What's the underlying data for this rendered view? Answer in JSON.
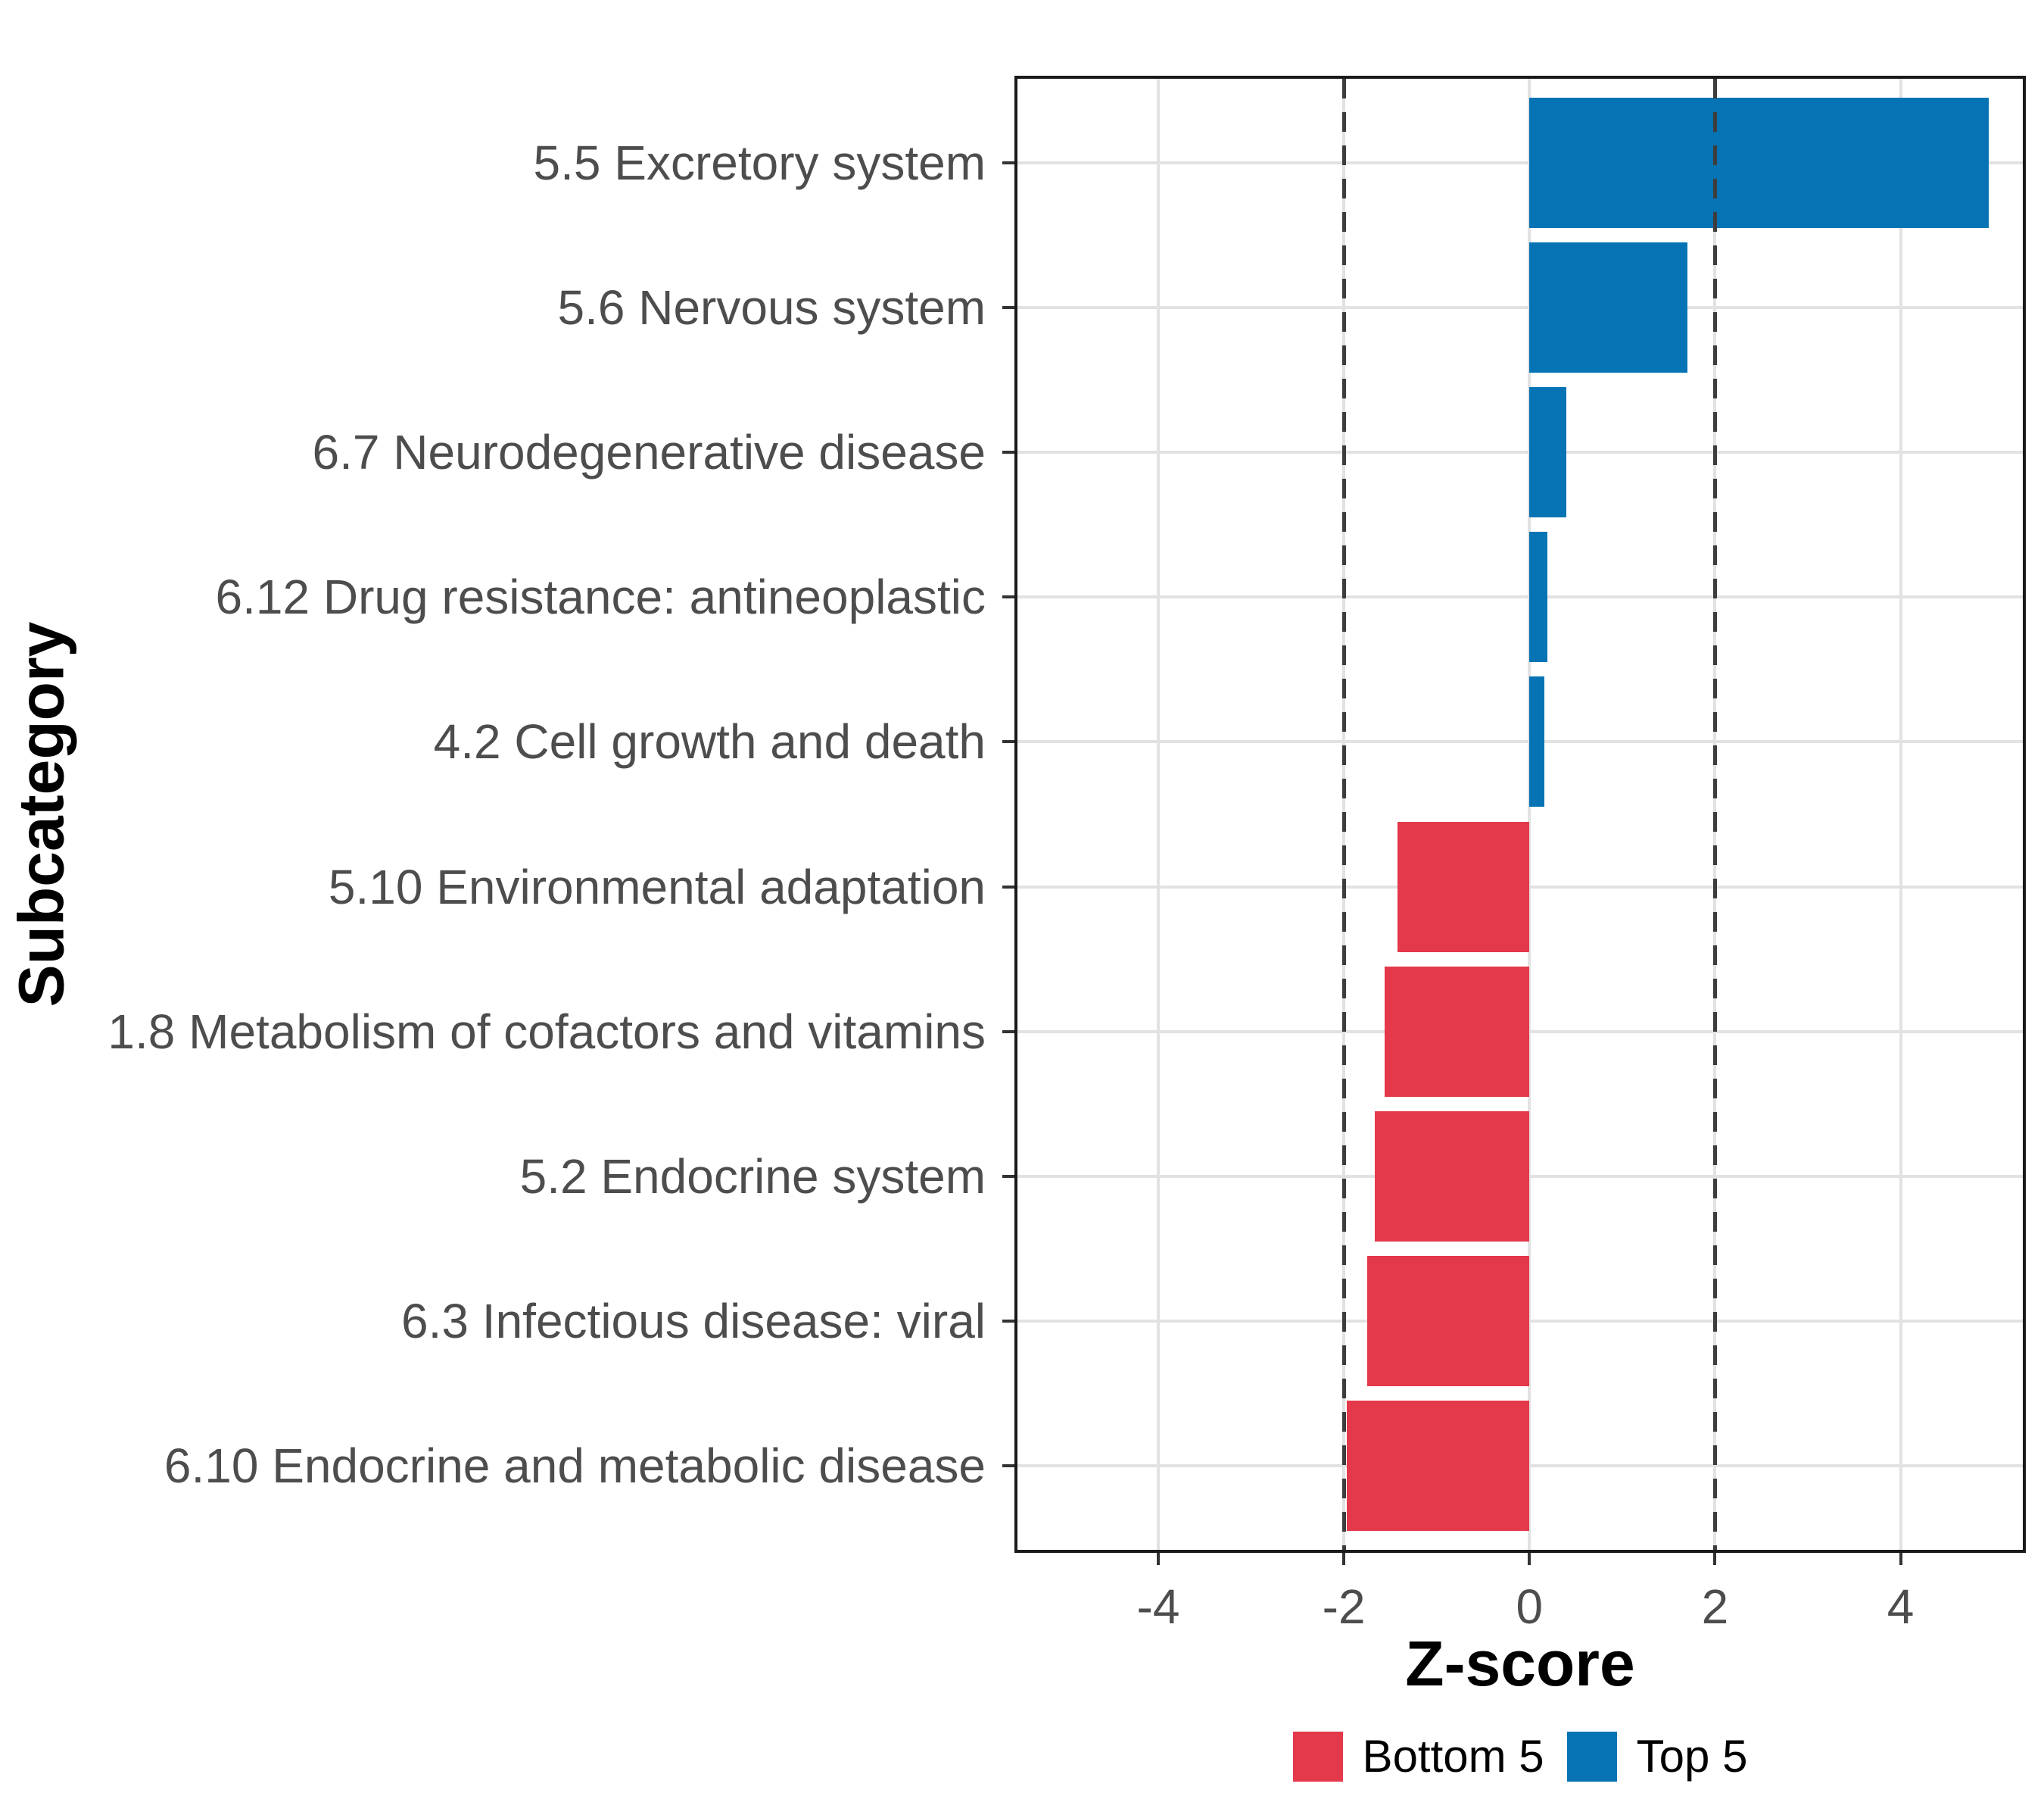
{
  "chart_data": {
    "type": "bar",
    "orientation": "horizontal",
    "xlabel": "Z-score",
    "ylabel": "Subcategory",
    "x_ticks": [
      -4,
      -2,
      0,
      2,
      4
    ],
    "xlim": [
      -5.55,
      5.35
    ],
    "reference_lines": [
      -2,
      2
    ],
    "grid": "major",
    "legend_position": "bottom",
    "categories": [
      "5.5 Excretory system",
      "5.6 Nervous system",
      "6.7 Neurodegenerative disease",
      "6.12 Drug resistance: antineoplastic",
      "4.2 Cell growth and death",
      "5.10 Environmental adaptation",
      "1.8 Metabolism of cofactors and vitamins",
      "5.2 Endocrine system",
      "6.3 Infectious disease: viral",
      "6.10 Endocrine and metabolic disease"
    ],
    "values": [
      4.95,
      1.7,
      0.4,
      0.19,
      0.16,
      -1.42,
      -1.56,
      -1.67,
      -1.75,
      -1.97
    ],
    "groups": [
      "Top 5",
      "Top 5",
      "Top 5",
      "Top 5",
      "Top 5",
      "Bottom 5",
      "Bottom 5",
      "Bottom 5",
      "Bottom 5",
      "Bottom 5"
    ],
    "colors": {
      "Top 5": "#0674b4",
      "Bottom 5": "#e3394a"
    },
    "legend": [
      {
        "label": "Bottom 5",
        "color": "#e3394a"
      },
      {
        "label": "Top 5",
        "color": "#0674b4"
      }
    ]
  }
}
